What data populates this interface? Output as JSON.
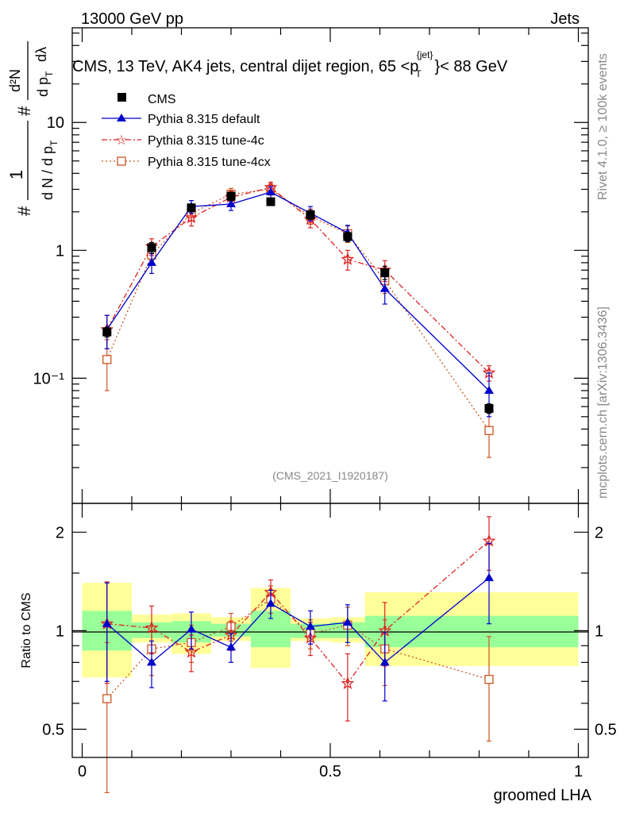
{
  "header": {
    "left": "13000 GeV pp",
    "right": "Jets",
    "title_main": "CMS, 13 TeV, AK4 jets, central dijet region, 65 <p",
    "title_sub": "T",
    "title_sup": "{jet}",
    "title_end": "}< 88 GeV"
  },
  "side": {
    "rivet": "Rivet 4.1.0, ≥ 100k events",
    "mcplots": "mcplots.cern.ch [arXiv:1306.3436]"
  },
  "watermark": "(CMS_2021_I1920187)",
  "ylabel_top": {
    "hash1": "#",
    "one": "1",
    "dN": "d N / d p",
    "dN_sub": "T",
    "hash2": "#",
    "d2N": "d²N",
    "dpT": "d p",
    "dpT_sub": "T",
    "dl": "dλ"
  },
  "ylabel_bottom": "Ratio to CMS",
  "xlabel": "groomed LHA",
  "colors": {
    "cms": "#000000",
    "default": "#0000cc",
    "tune4c": "#dd2222",
    "tune4cx": "#cc5522",
    "band_inner": "#99ff99",
    "band_outer": "#ffff99"
  },
  "chart_data": [
    {
      "type": "line",
      "scale": "log",
      "ylim": [
        0.0105,
        55
      ],
      "xlim": [
        -0.02,
        1.02
      ],
      "yticks": [
        {
          "v": 10,
          "label": "10"
        },
        {
          "v": 1,
          "label": "1"
        },
        {
          "v": 0.1,
          "label": "10⁻¹"
        }
      ],
      "legend_position": "top-left",
      "series": [
        {
          "name": "CMS",
          "color_key": "cms",
          "marker": "square",
          "x": [
            0.05,
            0.14,
            0.22,
            0.3,
            0.38,
            0.46,
            0.535,
            0.61,
            0.82
          ],
          "y": [
            0.23,
            1.05,
            2.15,
            2.65,
            2.4,
            1.9,
            1.28,
            0.67,
            0.058
          ],
          "err": [
            0.02,
            0.1,
            0.15,
            0.2,
            0.15,
            0.15,
            0.1,
            0.08,
            0.005
          ]
        },
        {
          "name": "Pythia 8.315 default",
          "color_key": "default",
          "marker": "triangle",
          "line": "solid",
          "x": [
            0.05,
            0.14,
            0.22,
            0.3,
            0.38,
            0.46,
            0.535,
            0.61,
            0.82
          ],
          "y": [
            0.24,
            0.8,
            2.2,
            2.3,
            2.85,
            1.95,
            1.37,
            0.5,
            0.08
          ],
          "err": [
            0.07,
            0.14,
            0.25,
            0.25,
            0.3,
            0.25,
            0.2,
            0.12,
            0.03
          ]
        },
        {
          "name": "Pythia 8.315 tune-4c",
          "color_key": "tune4c",
          "marker": "star",
          "line": "dashdot",
          "x": [
            0.05,
            0.14,
            0.22,
            0.3,
            0.38,
            0.46,
            0.535,
            0.61,
            0.82
          ],
          "y": [
            0.24,
            1.07,
            1.8,
            2.6,
            3.1,
            1.75,
            0.85,
            0.7,
            0.11
          ],
          "err": [
            0.07,
            0.16,
            0.25,
            0.3,
            0.3,
            0.25,
            0.15,
            0.13,
            0.015
          ]
        },
        {
          "name": "Pythia 8.315 tune-4cx",
          "color_key": "tune4cx",
          "marker": "opensquare",
          "line": "dotted",
          "x": [
            0.05,
            0.14,
            0.22,
            0.3,
            0.38,
            0.46,
            0.535,
            0.61,
            0.82
          ],
          "y": [
            0.14,
            0.92,
            1.95,
            2.75,
            3.0,
            1.85,
            1.35,
            0.58,
            0.039
          ],
          "err": [
            0.06,
            0.15,
            0.25,
            0.3,
            0.3,
            0.25,
            0.2,
            0.12,
            0.015
          ]
        }
      ]
    },
    {
      "type": "line",
      "scale": "log",
      "ylim": [
        0.41,
        2.45
      ],
      "xlim": [
        -0.02,
        1.02
      ],
      "ylabel": "Ratio to CMS",
      "xlabel": "groomed LHA",
      "yticks": [
        {
          "v": 2,
          "label": "2"
        },
        {
          "v": 1,
          "label": "1"
        },
        {
          "v": 0.5,
          "label": "0.5"
        }
      ],
      "xticks": [
        {
          "v": 0,
          "label": "0"
        },
        {
          "v": 0.5,
          "label": "0.5"
        },
        {
          "v": 1,
          "label": "1"
        }
      ],
      "bands": [
        {
          "x0": 0.0,
          "x1": 0.1,
          "in": [
            0.87,
            1.15
          ],
          "out": [
            0.72,
            1.4
          ]
        },
        {
          "x0": 0.1,
          "x1": 0.18,
          "in": [
            0.95,
            1.06
          ],
          "out": [
            0.92,
            1.12
          ]
        },
        {
          "x0": 0.18,
          "x1": 0.26,
          "in": [
            0.92,
            1.07
          ],
          "out": [
            0.85,
            1.13
          ]
        },
        {
          "x0": 0.26,
          "x1": 0.34,
          "in": [
            0.96,
            1.05
          ],
          "out": [
            0.93,
            1.1
          ]
        },
        {
          "x0": 0.34,
          "x1": 0.42,
          "in": [
            0.89,
            1.15
          ],
          "out": [
            0.77,
            1.35
          ]
        },
        {
          "x0": 0.42,
          "x1": 0.5,
          "in": [
            0.95,
            1.05
          ],
          "out": [
            0.93,
            1.09
          ]
        },
        {
          "x0": 0.5,
          "x1": 0.57,
          "in": [
            0.95,
            1.06
          ],
          "out": [
            0.92,
            1.1
          ]
        },
        {
          "x0": 0.57,
          "x1": 1.0,
          "in": [
            0.89,
            1.11
          ],
          "out": [
            0.78,
            1.31
          ]
        }
      ],
      "series": [
        {
          "name": "Pythia 8.315 default",
          "color_key": "default",
          "marker": "triangle",
          "line": "solid",
          "x": [
            0.05,
            0.14,
            0.22,
            0.3,
            0.38,
            0.46,
            0.535,
            0.61,
            0.82
          ],
          "y": [
            1.05,
            0.8,
            1.01,
            0.89,
            1.21,
            1.03,
            1.06,
            0.8,
            1.45
          ],
          "err": [
            0.35,
            0.13,
            0.13,
            0.09,
            0.12,
            0.12,
            0.14,
            0.19,
            0.4
          ]
        },
        {
          "name": "Pythia 8.315 tune-4c",
          "color_key": "tune4c",
          "marker": "star",
          "line": "dashdot",
          "x": [
            0.05,
            0.14,
            0.22,
            0.3,
            0.38,
            0.46,
            0.535,
            0.61,
            0.82
          ],
          "y": [
            1.05,
            1.02,
            0.86,
            0.97,
            1.31,
            0.95,
            0.69,
            1.0,
            1.88
          ],
          "err": [
            0.36,
            0.17,
            0.11,
            0.1,
            0.12,
            0.11,
            0.16,
            0.22,
            0.35
          ]
        },
        {
          "name": "Pythia 8.315 tune-4cx",
          "color_key": "tune4cx",
          "marker": "opensquare",
          "line": "dotted",
          "x": [
            0.05,
            0.14,
            0.22,
            0.3,
            0.38,
            0.46,
            0.535,
            0.61,
            0.82
          ],
          "y": [
            0.62,
            0.88,
            0.92,
            1.03,
            1.25,
            0.98,
            1.04,
            0.88,
            0.71
          ],
          "err": [
            0.3,
            0.15,
            0.12,
            0.1,
            0.12,
            0.1,
            0.14,
            0.2,
            0.25
          ]
        }
      ]
    }
  ]
}
